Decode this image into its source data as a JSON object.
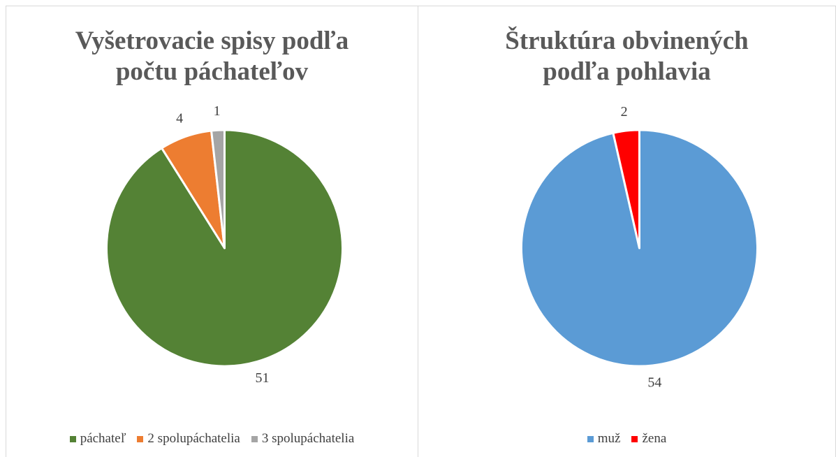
{
  "chart_data": [
    {
      "type": "pie",
      "title": "Vyšetrovacie spisy podľa počtu páchateľov",
      "categories": [
        "páchateľ",
        "2 spolupáchatelia",
        "3 spolupáchatelia"
      ],
      "values": [
        51,
        4,
        1
      ],
      "colors": [
        "#548235",
        "#ED7D31",
        "#A5A5A5"
      ],
      "legend": "bottom"
    },
    {
      "type": "pie",
      "title": "Štruktúra obvinených podľa pohlavia",
      "categories": [
        "muž",
        "žena"
      ],
      "values": [
        54,
        2
      ],
      "colors": [
        "#5B9BD5",
        "#FF0000"
      ],
      "legend": "bottom"
    }
  ]
}
